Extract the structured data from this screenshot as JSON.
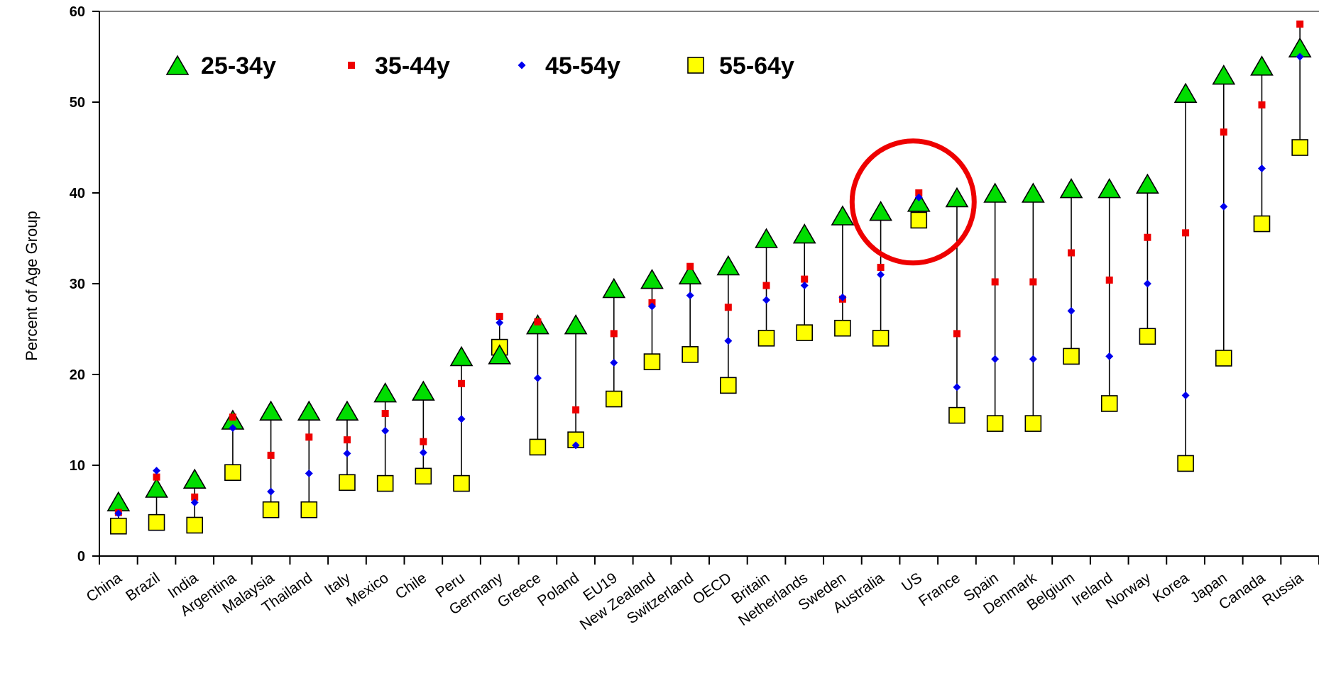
{
  "chart_data": {
    "type": "scatter",
    "title": "",
    "xlabel": "",
    "ylabel": "Percent of Age Group",
    "ylim": [
      0,
      60
    ],
    "yticks": [
      0,
      10,
      20,
      30,
      40,
      50,
      60
    ],
    "grid": false,
    "legend_position": "top-left",
    "categories": [
      "China",
      "Brazil",
      "India",
      "Argentina",
      "Malaysia",
      "Thailand",
      "Italy",
      "Mexico",
      "Chile",
      "Peru",
      "Germany",
      "Greece",
      "Poland",
      "EU19",
      "New Zealand",
      "Switzerland",
      "OECD",
      "Britain",
      "Netherlands",
      "Sweden",
      "Australia",
      "US",
      "France",
      "Spain",
      "Denmark",
      "Belgium",
      "Ireland",
      "Norway",
      "Korea",
      "Japan",
      "Canada",
      "Russia"
    ],
    "series": [
      {
        "name": "25-34y",
        "marker": "triangle",
        "color": "#00dd00",
        "values": [
          6,
          7.5,
          8.5,
          15,
          16,
          16,
          16,
          18,
          18.2,
          22,
          22.2,
          25.5,
          25.5,
          29.5,
          30.5,
          31,
          32,
          35,
          35.5,
          37.5,
          38,
          39,
          39.5,
          40,
          40,
          40.5,
          40.5,
          41,
          51,
          53,
          54,
          56
        ]
      },
      {
        "name": "35-44y",
        "marker": "square-small",
        "color": "#ee0000",
        "values": [
          4.8,
          8.7,
          6.5,
          15.3,
          11.1,
          13.1,
          12.8,
          15.7,
          12.6,
          19,
          26.4,
          25.8,
          16.1,
          24.5,
          27.9,
          31.9,
          27.4,
          29.8,
          30.5,
          28.3,
          31.8,
          40,
          24.5,
          30.2,
          30.2,
          33.4,
          30.4,
          35.1,
          35.6,
          46.7,
          49.7,
          58.6
        ]
      },
      {
        "name": "45-54y",
        "marker": "diamond",
        "color": "#0000ee",
        "values": [
          4.7,
          9.4,
          5.9,
          14.1,
          7.1,
          9.1,
          11.3,
          13.8,
          11.4,
          15.1,
          25.7,
          19.6,
          12.2,
          21.3,
          27.5,
          28.7,
          23.7,
          28.2,
          29.8,
          28.5,
          31,
          39.5,
          18.6,
          21.7,
          21.7,
          27,
          22,
          30,
          17.7,
          38.5,
          42.7,
          55
        ]
      },
      {
        "name": "55-64y",
        "marker": "square",
        "color": "#ffff00",
        "values": [
          3.3,
          3.7,
          3.4,
          9.2,
          5.1,
          5.1,
          8.1,
          8,
          8.8,
          8,
          23,
          12,
          12.8,
          17.3,
          21.4,
          22.2,
          18.8,
          24,
          24.6,
          25.1,
          24,
          37,
          15.5,
          14.6,
          14.6,
          22,
          16.8,
          24.2,
          10.2,
          21.8,
          36.6,
          45
        ]
      }
    ],
    "highlight": {
      "category": "US",
      "shape": "circle",
      "color": "#ee0000"
    }
  }
}
